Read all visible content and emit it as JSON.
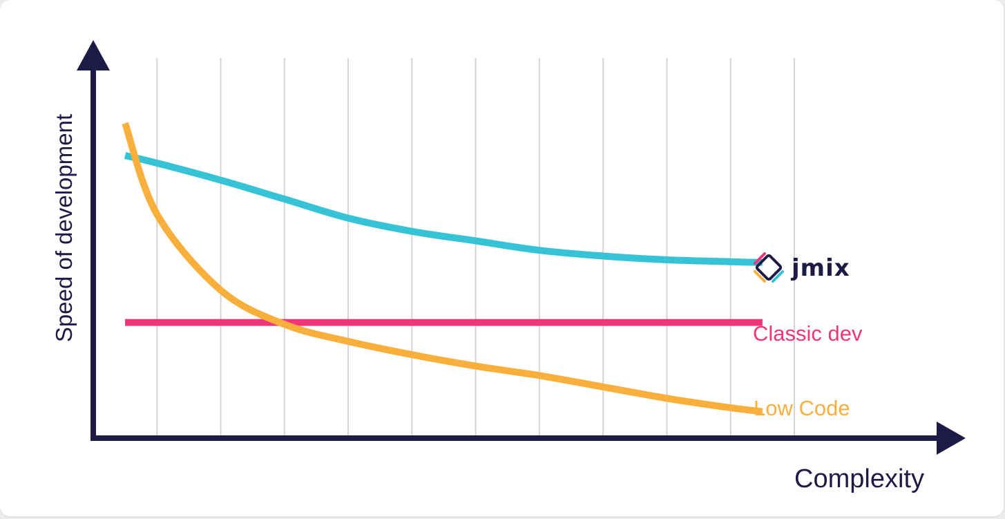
{
  "chart_data": {
    "type": "line",
    "xlabel": "Complexity",
    "ylabel": "Speed of development",
    "x": [
      0.5,
      1,
      2,
      3,
      4,
      5,
      6,
      7,
      8,
      9,
      10,
      10.5
    ],
    "xlim": [
      0,
      11
    ],
    "ylim": [
      0,
      10
    ],
    "grid": true,
    "legend": "right, inline at line ends",
    "series": [
      {
        "name": "jmix",
        "color": "#36c3d6",
        "values": [
          7.45,
          7.25,
          6.8,
          6.3,
          5.8,
          5.45,
          5.2,
          4.95,
          4.8,
          4.7,
          4.65,
          4.63
        ],
        "label_type": "logo"
      },
      {
        "name": "Classic dev",
        "color": "#f0357a",
        "values": [
          3.05,
          3.05,
          3.05,
          3.05,
          3.05,
          3.05,
          3.05,
          3.05,
          3.05,
          3.05,
          3.05,
          3.05
        ]
      },
      {
        "name": "Low Code",
        "color": "#f9af3b",
        "values": [
          8.3,
          5.9,
          3.9,
          3.0,
          2.55,
          2.2,
          1.9,
          1.65,
          1.35,
          1.05,
          0.8,
          0.7
        ]
      }
    ],
    "axis_color": "#1d1b46",
    "grid_color": "#d4d4d4"
  }
}
